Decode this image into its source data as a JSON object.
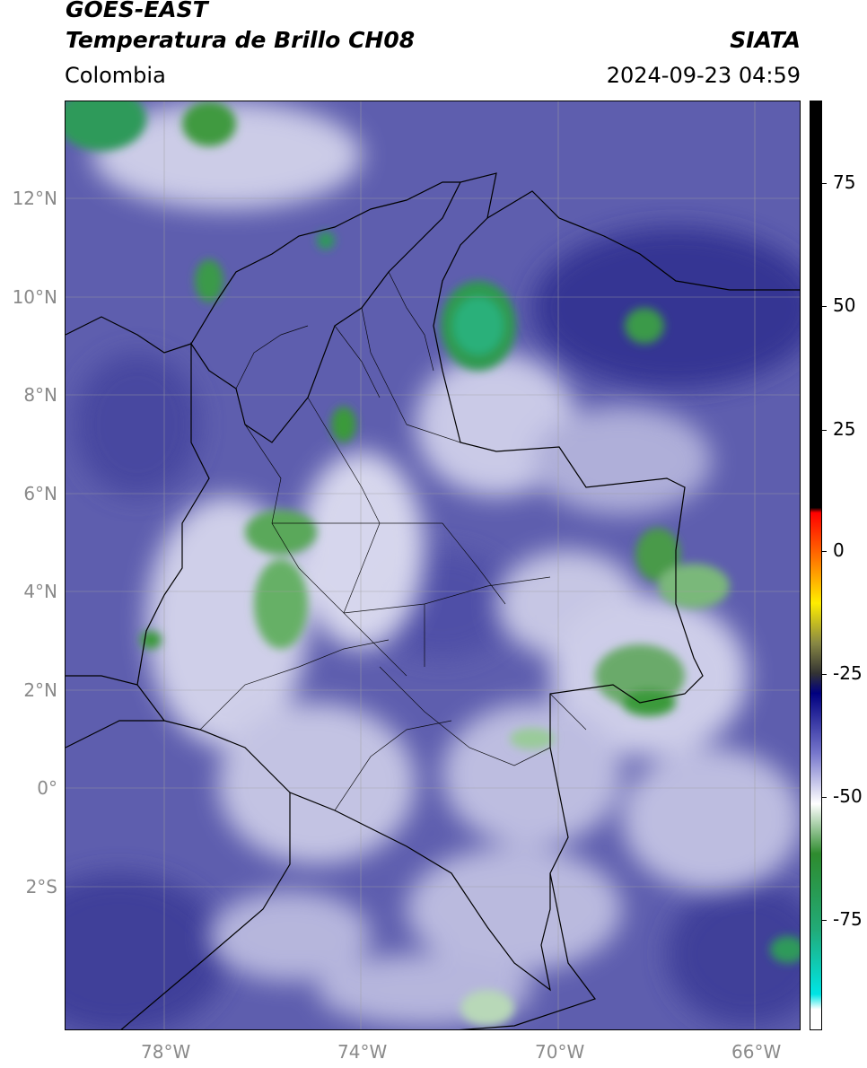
{
  "header": {
    "satellite": "GOES-EAST",
    "product": "Temperatura de Brillo CH08",
    "org": "SIATA",
    "region": "Colombia",
    "datetime": "2024-09-23 04:59"
  },
  "map": {
    "lat_labels": [
      "12°N",
      "10°N",
      "8°N",
      "6°N",
      "4°N",
      "2°N",
      "0°",
      "2°S"
    ],
    "lon_labels": [
      "78°W",
      "74°W",
      "70°W",
      "66°W"
    ],
    "lon_range": [
      -80,
      -65
    ],
    "lat_range": [
      -5,
      14
    ],
    "background_color": "#5f5fb0",
    "border_color": "#000000"
  },
  "colorbar": {
    "labels": [
      "75",
      "50",
      "25",
      "0",
      "-25",
      "-50",
      "-75"
    ],
    "values": [
      75,
      50,
      25,
      0,
      -25,
      -50,
      -75
    ],
    "range": [
      -95,
      90
    ],
    "stops": [
      {
        "v": 90,
        "c": "#000000"
      },
      {
        "v": 9,
        "c": "#000000"
      },
      {
        "v": 8,
        "c": "#ff0000"
      },
      {
        "v": 0,
        "c": "#ff6600"
      },
      {
        "v": -10,
        "c": "#ffee00"
      },
      {
        "v": -18,
        "c": "#888844"
      },
      {
        "v": -24,
        "c": "#333333"
      },
      {
        "v": -28,
        "c": "#000080"
      },
      {
        "v": -40,
        "c": "#7777cc"
      },
      {
        "v": -50,
        "c": "#ffffff"
      },
      {
        "v": -60,
        "c": "#2e8b2e"
      },
      {
        "v": -75,
        "c": "#22aa77"
      },
      {
        "v": -88,
        "c": "#00e5e5"
      },
      {
        "v": -91,
        "c": "#ffffff"
      },
      {
        "v": -95,
        "c": "#ffffff"
      }
    ]
  }
}
